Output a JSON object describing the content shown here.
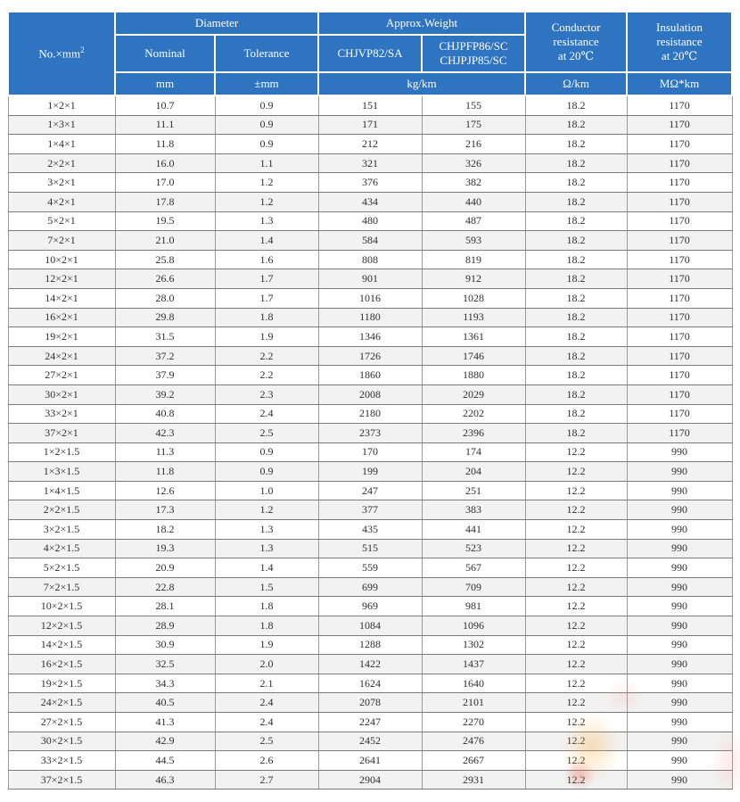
{
  "colors": {
    "header_bg": "#2e74c1",
    "alt_row_bg": "#f2f2f2",
    "border_horizontal": "#7b7b7b",
    "border_vertical": "#9a9a9a",
    "header_text": "#ffffff",
    "body_text": "#2f2f2f",
    "watermark_orange": "#ffaa32",
    "watermark_red": "#d73c2d"
  },
  "header": {
    "col_size_base": "No.×mm",
    "col_size_sup": "2",
    "diameter": "Diameter",
    "nominal": "Nominal",
    "tolerance": "Tolerance",
    "weight": "Approx.Weight",
    "weight_col1": "CHJVP82/SA",
    "weight_col2_line1": "CHJPFP86/SC",
    "weight_col2_line2": "CHJPJP85/SC",
    "conductor_line1": "Conductor",
    "conductor_line2": "resistance",
    "conductor_line3": "at 20℃",
    "insulation_line1": "Insulation",
    "insulation_line2": "resistance",
    "insulation_line3": "at 20℃",
    "units": {
      "mm": "mm",
      "tolerance": "±mm",
      "weight": "kg/km",
      "conductor": "Ω/km",
      "insulation": "MΩ*km"
    }
  },
  "table": {
    "column_keys": [
      "size",
      "nominal",
      "tolerance",
      "weight-chjvp82",
      "weight-chjpfp86",
      "conductor-resistance",
      "insulation-resistance"
    ],
    "rows": [
      [
        "1×2×1",
        "10.7",
        "0.9",
        "151",
        "155",
        "18.2",
        "1170"
      ],
      [
        "1×3×1",
        "11.1",
        "0.9",
        "171",
        "175",
        "18.2",
        "1170"
      ],
      [
        "1×4×1",
        "11.8",
        "0.9",
        "212",
        "216",
        "18.2",
        "1170"
      ],
      [
        "2×2×1",
        "16.0",
        "1.1",
        "321",
        "326",
        "18.2",
        "1170"
      ],
      [
        "3×2×1",
        "17.0",
        "1.2",
        "376",
        "382",
        "18.2",
        "1170"
      ],
      [
        "4×2×1",
        "17.8",
        "1.2",
        "434",
        "440",
        "18.2",
        "1170"
      ],
      [
        "5×2×1",
        "19.5",
        "1.3",
        "480",
        "487",
        "18.2",
        "1170"
      ],
      [
        "7×2×1",
        "21.0",
        "1.4",
        "584",
        "593",
        "18.2",
        "1170"
      ],
      [
        "10×2×1",
        "25.8",
        "1.6",
        "808",
        "819",
        "18.2",
        "1170"
      ],
      [
        "12×2×1",
        "26.6",
        "1.7",
        "901",
        "912",
        "18.2",
        "1170"
      ],
      [
        "14×2×1",
        "28.0",
        "1.7",
        "1016",
        "1028",
        "18.2",
        "1170"
      ],
      [
        "16×2×1",
        "29.8",
        "1.8",
        "1180",
        "1193",
        "18.2",
        "1170"
      ],
      [
        "19×2×1",
        "31.5",
        "1.9",
        "1346",
        "1361",
        "18.2",
        "1170"
      ],
      [
        "24×2×1",
        "37.2",
        "2.2",
        "1726",
        "1746",
        "18.2",
        "1170"
      ],
      [
        "27×2×1",
        "37.9",
        "2.2",
        "1860",
        "1880",
        "18.2",
        "1170"
      ],
      [
        "30×2×1",
        "39.2",
        "2.3",
        "2008",
        "2029",
        "18.2",
        "1170"
      ],
      [
        "33×2×1",
        "40.8",
        "2.4",
        "2180",
        "2202",
        "18.2",
        "1170"
      ],
      [
        "37×2×1",
        "42.3",
        "2.5",
        "2373",
        "2396",
        "18.2",
        "1170"
      ],
      [
        "1×2×1.5",
        "11.3",
        "0.9",
        "170",
        "174",
        "12.2",
        "990"
      ],
      [
        "1×3×1.5",
        "11.8",
        "0.9",
        "199",
        "204",
        "12.2",
        "990"
      ],
      [
        "1×4×1.5",
        "12.6",
        "1.0",
        "247",
        "251",
        "12.2",
        "990"
      ],
      [
        "2×2×1.5",
        "17.3",
        "1.2",
        "377",
        "383",
        "12.2",
        "990"
      ],
      [
        "3×2×1.5",
        "18.2",
        "1.3",
        "435",
        "441",
        "12.2",
        "990"
      ],
      [
        "4×2×1.5",
        "19.3",
        "1.3",
        "515",
        "523",
        "12.2",
        "990"
      ],
      [
        "5×2×1.5",
        "20.9",
        "1.4",
        "559",
        "567",
        "12.2",
        "990"
      ],
      [
        "7×2×1.5",
        "22.8",
        "1.5",
        "699",
        "709",
        "12.2",
        "990"
      ],
      [
        "10×2×1.5",
        "28.1",
        "1.8",
        "969",
        "981",
        "12.2",
        "990"
      ],
      [
        "12×2×1.5",
        "28.9",
        "1.8",
        "1084",
        "1096",
        "12.2",
        "990"
      ],
      [
        "14×2×1.5",
        "30.9",
        "1.9",
        "1288",
        "1302",
        "12.2",
        "990"
      ],
      [
        "16×2×1.5",
        "32.5",
        "2.0",
        "1422",
        "1437",
        "12.2",
        "990"
      ],
      [
        "19×2×1.5",
        "34.3",
        "2.1",
        "1624",
        "1640",
        "12.2",
        "990"
      ],
      [
        "24×2×1.5",
        "40.5",
        "2.4",
        "2078",
        "2101",
        "12.2",
        "990"
      ],
      [
        "27×2×1.5",
        "41.3",
        "2.4",
        "2247",
        "2270",
        "12.2",
        "990"
      ],
      [
        "30×2×1.5",
        "42.9",
        "2.5",
        "2452",
        "2476",
        "12.2",
        "990"
      ],
      [
        "33×2×1.5",
        "44.5",
        "2.6",
        "2641",
        "2667",
        "12.2",
        "990"
      ],
      [
        "37×2×1.5",
        "46.3",
        "2.7",
        "2904",
        "2931",
        "12.2",
        "990"
      ]
    ]
  }
}
